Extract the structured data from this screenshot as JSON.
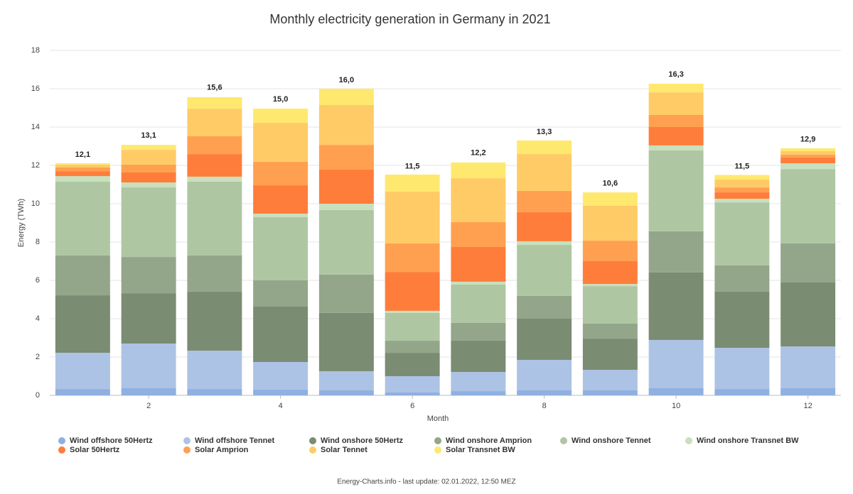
{
  "chart_data": {
    "type": "stacked_bar",
    "title": "Monthly electricity generation in Germany in 2021",
    "x_label": "Month",
    "y_label": "Energy (TWh)",
    "footer": "Energy-Charts.info - last update: 02.01.2022, 12:50 MEZ",
    "x": [
      1,
      2,
      3,
      4,
      5,
      6,
      7,
      8,
      9,
      10,
      11,
      12
    ],
    "xlim": [
      0.5,
      12.5
    ],
    "xticks": [
      2,
      4,
      6,
      8,
      10,
      12
    ],
    "ylim": [
      0,
      18
    ],
    "yticks": [
      0,
      2,
      4,
      6,
      8,
      10,
      12,
      14,
      16,
      18
    ],
    "grid": true,
    "series": [
      {
        "name": "Wind offshore 50Hertz",
        "color": "#8fb0e0",
        "values": [
          0.33,
          0.37,
          0.33,
          0.3,
          0.26,
          0.15,
          0.22,
          0.26,
          0.26,
          0.37,
          0.33,
          0.37
        ]
      },
      {
        "name": "Wind offshore Tennet",
        "color": "#adc3e5",
        "values": [
          1.89,
          2.33,
          2.0,
          1.44,
          1.0,
          0.85,
          1.0,
          1.59,
          1.07,
          2.52,
          2.15,
          2.18
        ]
      },
      {
        "name": "Wind onshore 50Hertz",
        "color": "#7a8c72",
        "values": [
          3.0,
          2.63,
          3.08,
          2.89,
          3.04,
          1.22,
          1.63,
          2.15,
          1.63,
          3.52,
          2.93,
          3.34
        ]
      },
      {
        "name": "Wind onshore Amprion",
        "color": "#93a68a",
        "values": [
          2.08,
          1.89,
          1.89,
          1.37,
          2.0,
          0.63,
          0.93,
          1.19,
          0.78,
          2.15,
          1.37,
          2.04
        ]
      },
      {
        "name": "Wind onshore Tennet",
        "color": "#afc6a3",
        "values": [
          3.85,
          3.63,
          3.85,
          3.3,
          3.37,
          1.45,
          2.0,
          2.66,
          1.96,
          4.22,
          3.29,
          3.88
        ]
      },
      {
        "name": "Wind onshore Transnet BW",
        "color": "#c8e0bd",
        "values": [
          0.29,
          0.26,
          0.26,
          0.18,
          0.33,
          0.11,
          0.15,
          0.19,
          0.11,
          0.26,
          0.19,
          0.3
        ]
      },
      {
        "name": "Solar 50Hertz",
        "color": "#ff7d3b",
        "values": [
          0.26,
          0.52,
          1.18,
          1.48,
          1.78,
          2.03,
          1.81,
          1.52,
          1.19,
          0.96,
          0.33,
          0.3
        ]
      },
      {
        "name": "Solar Amprion",
        "color": "#ffa050",
        "values": [
          0.19,
          0.41,
          0.93,
          1.23,
          1.29,
          1.49,
          1.3,
          1.11,
          1.07,
          0.63,
          0.26,
          0.15
        ]
      },
      {
        "name": "Solar Tennet",
        "color": "#ffcb66",
        "values": [
          0.15,
          0.77,
          1.44,
          2.03,
          2.08,
          2.7,
          2.29,
          1.92,
          1.82,
          1.18,
          0.41,
          0.18
        ]
      },
      {
        "name": "Solar Transnet BW",
        "color": "#ffe86e",
        "values": [
          0.07,
          0.26,
          0.6,
          0.74,
          0.85,
          0.89,
          0.82,
          0.71,
          0.7,
          0.45,
          0.24,
          0.15
        ]
      }
    ],
    "totals": [
      12.1,
      13.1,
      15.6,
      15.0,
      16.0,
      11.5,
      12.2,
      13.3,
      10.6,
      16.3,
      11.5,
      12.9
    ],
    "total_labels": [
      "12,1",
      "13,1",
      "15,6",
      "15,0",
      "16,0",
      "11,5",
      "12,2",
      "13,3",
      "10,6",
      "16,3",
      "11,5",
      "12,9"
    ]
  }
}
